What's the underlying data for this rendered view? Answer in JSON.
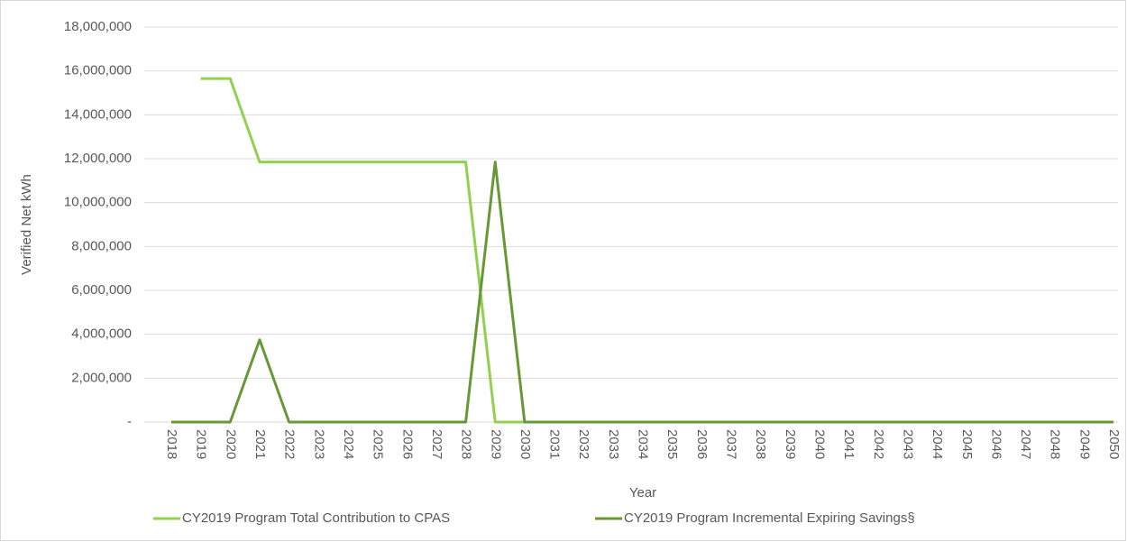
{
  "chart_data": {
    "type": "line",
    "y_label": "Verified Net kWh",
    "x_label": "Year",
    "categories": [
      "2018",
      "2019",
      "2020",
      "2021",
      "2022",
      "2023",
      "2024",
      "2025",
      "2026",
      "2027",
      "2028",
      "2029",
      "2030",
      "2031",
      "2032",
      "2033",
      "2034",
      "2035",
      "2036",
      "2037",
      "2038",
      "2039",
      "2040",
      "2041",
      "2042",
      "2043",
      "2044",
      "2045",
      "2046",
      "2047",
      "2048",
      "2049",
      "2050"
    ],
    "series": [
      {
        "name": "CY2019 Program Total Contribution to CPAS",
        "color": "#92d050",
        "values": [
          null,
          15650000,
          15650000,
          11850000,
          11850000,
          11850000,
          11850000,
          11850000,
          11850000,
          11850000,
          11850000,
          0,
          0,
          0,
          0,
          0,
          0,
          0,
          0,
          0,
          0,
          0,
          0,
          0,
          0,
          0,
          0,
          0,
          0,
          0,
          0,
          0,
          0
        ]
      },
      {
        "name": "CY2019 Program Incremental Expiring Savings§",
        "color": "#669933",
        "values": [
          0,
          0,
          0,
          3750000,
          0,
          0,
          0,
          0,
          0,
          0,
          0,
          11850000,
          0,
          0,
          0,
          0,
          0,
          0,
          0,
          0,
          0,
          0,
          0,
          0,
          0,
          0,
          0,
          0,
          0,
          0,
          0,
          0,
          0
        ]
      }
    ],
    "ylim": [
      0,
      18000000
    ],
    "yticks": [
      {
        "value": 0,
        "label": "-"
      },
      {
        "value": 2000000,
        "label": "2,000,000"
      },
      {
        "value": 4000000,
        "label": "4,000,000"
      },
      {
        "value": 6000000,
        "label": "6,000,000"
      },
      {
        "value": 8000000,
        "label": "8,000,000"
      },
      {
        "value": 10000000,
        "label": "10,000,000"
      },
      {
        "value": 12000000,
        "label": "12,000,000"
      },
      {
        "value": 14000000,
        "label": "14,000,000"
      },
      {
        "value": 16000000,
        "label": "16,000,000"
      },
      {
        "value": 18000000,
        "label": "18,000,000"
      }
    ],
    "grid": true,
    "legend": "bottom"
  }
}
